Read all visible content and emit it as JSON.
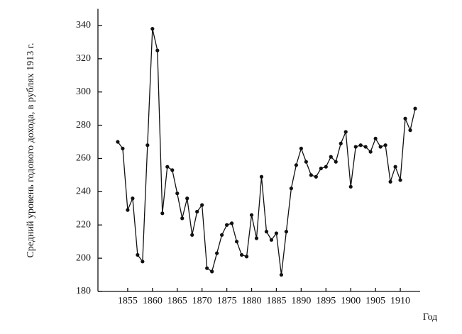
{
  "chart_data": {
    "type": "line",
    "y_label": "Средний уровень годового дохода, в рублях 1913 г.",
    "x_label": "Год",
    "x": [
      1853,
      1854,
      1855,
      1856,
      1857,
      1858,
      1859,
      1860,
      1861,
      1862,
      1863,
      1864,
      1865,
      1866,
      1867,
      1868,
      1869,
      1870,
      1871,
      1872,
      1873,
      1874,
      1875,
      1876,
      1877,
      1878,
      1879,
      1880,
      1881,
      1882,
      1883,
      1884,
      1885,
      1886,
      1887,
      1888,
      1889,
      1890,
      1891,
      1892,
      1893,
      1894,
      1895,
      1896,
      1897,
      1898,
      1899,
      1900,
      1901,
      1902,
      1903,
      1904,
      1905,
      1906,
      1907,
      1908,
      1909,
      1910,
      1911,
      1912,
      1913
    ],
    "values": [
      270,
      266,
      229,
      236,
      202,
      198,
      268,
      338,
      325,
      227,
      255,
      253,
      239,
      224,
      236,
      214,
      228,
      232,
      194,
      192,
      203,
      214,
      220,
      221,
      210,
      202,
      201,
      226,
      212,
      249,
      216,
      211,
      215,
      190,
      216,
      242,
      256,
      266,
      258,
      250,
      249,
      254,
      255,
      261,
      258,
      269,
      276,
      243,
      267,
      268,
      267,
      264,
      272,
      267,
      268,
      246,
      255,
      247,
      284,
      277,
      290
    ],
    "color": "#111111",
    "xlim": [
      1849,
      1914
    ],
    "ylim": [
      180,
      350
    ],
    "xticks": [
      1855,
      1860,
      1865,
      1870,
      1875,
      1880,
      1885,
      1890,
      1895,
      1900,
      1905,
      1910
    ],
    "yticks": [
      180,
      200,
      220,
      240,
      260,
      280,
      300,
      320,
      340
    ],
    "grid": false
  }
}
